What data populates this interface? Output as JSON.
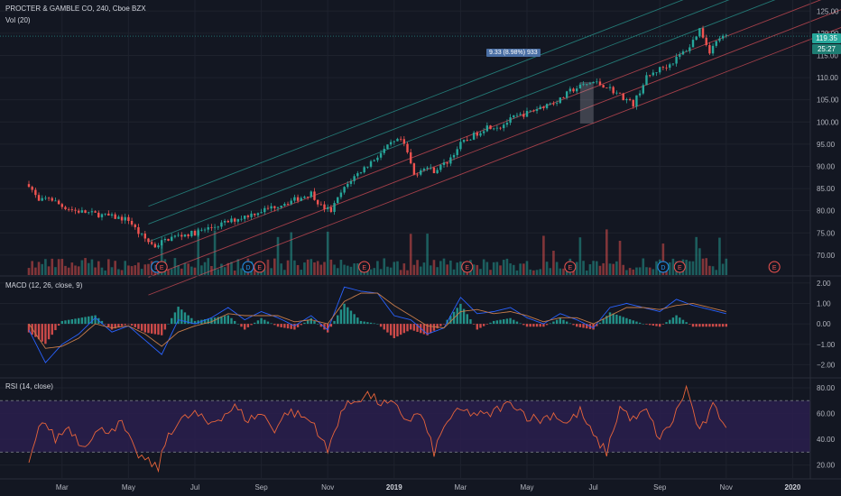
{
  "header": {
    "symbol_title": "PROCTER & GAMBLE CO, 240, Cboe BZX",
    "volume_label": "Vol (20)",
    "macd_label": "MACD (12, 26, close, 9)",
    "rsi_label": "RSI (14, close)"
  },
  "price_tags": {
    "last_price": "119.35",
    "countdown": "25:27"
  },
  "measure_label": "9.33 (8.98%) 933",
  "colors": {
    "background": "#131722",
    "up": "#26a69a",
    "down": "#ef5350",
    "channel_teal": "#2aa198",
    "channel_red": "#e0505a",
    "macd_line": "#2962ff",
    "signal_line": "#c77c4a",
    "rsi_line": "#e8643a",
    "rsi_band": "#2a1f4d"
  },
  "x_axis": {
    "labels": [
      "Mar",
      "May",
      "Jul",
      "Sep",
      "Nov",
      "2019",
      "Mar",
      "May",
      "Jul",
      "Sep",
      "Nov",
      "2020"
    ]
  },
  "events": [
    {
      "icon": "D",
      "month": 3.85
    },
    {
      "icon": "E",
      "month": 4.0
    },
    {
      "icon": "D",
      "month": 6.6
    },
    {
      "icon": "E",
      "month": 6.95
    },
    {
      "icon": "E",
      "month": 10.1
    },
    {
      "icon": "E",
      "month": 13.2
    },
    {
      "icon": "E",
      "month": 16.3
    },
    {
      "icon": "D",
      "month": 19.1
    },
    {
      "icon": "E",
      "month": 19.6
    },
    {
      "icon": "E",
      "month": 22.45
    }
  ],
  "chart_data": [
    {
      "type": "line",
      "panel": "price",
      "title": "PROCTER & GAMBLE CO, 240, Cboe BZX",
      "x_unit": "months since Feb 2018 (Feb = 0)",
      "y_axis": {
        "ticks": [
          70,
          75,
          80,
          85,
          90,
          95,
          100,
          105,
          110,
          115,
          120,
          125
        ],
        "range": [
          65.5,
          127.5
        ]
      },
      "series": [
        {
          "name": "close (approx.)",
          "x": [
            0,
            0.3,
            0.6,
            1.0,
            1.4,
            1.8,
            2.2,
            2.6,
            3.0,
            3.3,
            3.6,
            3.8,
            4.0,
            4.3,
            4.6,
            5.0,
            5.4,
            5.8,
            6.2,
            6.6,
            7.0,
            7.4,
            7.8,
            8.2,
            8.5,
            8.8,
            9.1,
            9.4,
            9.7,
            10.0,
            10.3,
            10.6,
            10.9,
            11.2,
            11.4,
            11.6,
            11.9,
            12.2,
            12.6,
            13.0,
            13.4,
            13.8,
            14.2,
            14.6,
            15.0,
            15.3,
            15.6,
            16.0,
            16.3,
            16.6,
            17.0,
            17.4,
            17.8,
            18.2,
            18.6,
            19.0,
            19.3,
            19.6,
            19.9,
            20.2,
            20.5,
            20.8,
            21.1
          ],
          "y": [
            86,
            82,
            83,
            81,
            80,
            79.5,
            79,
            78.5,
            78,
            75,
            73,
            72,
            73,
            74,
            74.5,
            75,
            76,
            77,
            78,
            79,
            80,
            81,
            82,
            83,
            84,
            81,
            80,
            84,
            87,
            89,
            91,
            93,
            95,
            96,
            93,
            88,
            90,
            89,
            91,
            95,
            97,
            99,
            99,
            101,
            102,
            103,
            104,
            105,
            107,
            108,
            109,
            108,
            106,
            104,
            110,
            112,
            113,
            115,
            117,
            121,
            116,
            119,
            119.35
          ]
        }
      ],
      "channel": {
        "description": "parallel regression channel, 3 teal lines and 3 red lines",
        "anchor_start": {
          "month": 3.6,
          "price": 73
        },
        "anchor_end": {
          "month": 20.2,
          "price": 121
        }
      },
      "last_price": 119.35,
      "measurement": {
        "change": 9.33,
        "percent": 8.98,
        "bars": 933,
        "from_month": 16.6,
        "to_month": 17.0
      }
    },
    {
      "type": "bar",
      "panel": "volume",
      "title": "Vol (20)",
      "note": "volume bars along bottom of price pane, colored by candle direction"
    },
    {
      "type": "line",
      "panel": "macd",
      "title": "MACD (12, 26, close, 9)",
      "y_axis": {
        "ticks": [
          -2.0,
          -1.0,
          0.0,
          1.0,
          2.0
        ],
        "range": [
          -2.6,
          2.3
        ]
      },
      "series": [
        {
          "name": "MACD",
          "x": [
            0,
            0.5,
            1.0,
            1.5,
            2.0,
            2.5,
            3.0,
            3.5,
            4.0,
            4.5,
            5.0,
            5.5,
            6.0,
            6.5,
            7.0,
            7.5,
            8.0,
            8.5,
            9.0,
            9.5,
            10.0,
            10.5,
            11.0,
            11.5,
            12.0,
            12.5,
            13.0,
            13.5,
            14.0,
            14.5,
            15.0,
            15.5,
            16.0,
            16.5,
            17.0,
            17.5,
            18.0,
            18.5,
            19.0,
            19.5,
            20.0,
            20.5,
            21.0
          ],
          "y": [
            -0.3,
            -1.9,
            -1.0,
            -0.5,
            0.3,
            -0.4,
            -0.1,
            -0.8,
            -1.5,
            0.2,
            0.0,
            0.3,
            0.8,
            0.2,
            0.6,
            0.3,
            -0.1,
            0.4,
            -0.3,
            1.8,
            1.6,
            1.5,
            0.4,
            0.2,
            -0.5,
            -0.2,
            1.3,
            0.5,
            0.6,
            0.8,
            0.3,
            0.0,
            0.5,
            0.2,
            -0.2,
            0.8,
            1.0,
            0.8,
            0.6,
            1.2,
            0.9,
            0.7,
            0.5
          ]
        },
        {
          "name": "Signal",
          "x": [
            0,
            0.5,
            1.0,
            1.5,
            2.0,
            2.5,
            3.0,
            3.5,
            4.0,
            4.5,
            5.0,
            5.5,
            6.0,
            6.5,
            7.0,
            7.5,
            8.0,
            8.5,
            9.0,
            9.5,
            10.0,
            10.5,
            11.0,
            11.5,
            12.0,
            12.5,
            13.0,
            13.5,
            14.0,
            14.5,
            15.0,
            15.5,
            16.0,
            16.5,
            17.0,
            17.5,
            18.0,
            18.5,
            19.0,
            19.5,
            20.0,
            20.5,
            21.0
          ],
          "y": [
            0.0,
            -1.2,
            -1.1,
            -0.7,
            0.0,
            -0.2,
            -0.1,
            -0.5,
            -1.1,
            -0.4,
            -0.1,
            0.1,
            0.5,
            0.4,
            0.4,
            0.4,
            0.1,
            0.2,
            0.0,
            1.1,
            1.5,
            1.5,
            0.9,
            0.4,
            -0.1,
            -0.2,
            0.6,
            0.7,
            0.5,
            0.6,
            0.4,
            0.1,
            0.3,
            0.3,
            0.0,
            0.4,
            0.8,
            0.8,
            0.7,
            0.9,
            1.0,
            0.8,
            0.6
          ]
        }
      ]
    },
    {
      "type": "line",
      "panel": "rsi",
      "title": "RSI (14, close)",
      "y_axis": {
        "ticks": [
          20.0,
          40.0,
          60.0,
          80.0
        ],
        "range": [
          10,
          87
        ]
      },
      "bands": {
        "upper": 70,
        "lower": 30
      },
      "series": [
        {
          "name": "RSI",
          "x": [
            0,
            0.4,
            0.8,
            1.2,
            1.6,
            2.0,
            2.4,
            2.8,
            3.2,
            3.6,
            3.9,
            4.2,
            4.6,
            5.0,
            5.4,
            5.8,
            6.2,
            6.6,
            7.0,
            7.4,
            7.8,
            8.2,
            8.6,
            9.0,
            9.4,
            9.8,
            10.2,
            10.6,
            11.0,
            11.4,
            11.8,
            12.2,
            12.6,
            13.0,
            13.4,
            13.8,
            14.2,
            14.6,
            15.0,
            15.4,
            15.8,
            16.2,
            16.6,
            17.0,
            17.4,
            17.8,
            18.2,
            18.6,
            19.0,
            19.4,
            19.8,
            20.2,
            20.6,
            21.0
          ],
          "y": [
            20,
            56,
            40,
            50,
            35,
            45,
            48,
            52,
            30,
            22,
            18,
            45,
            55,
            60,
            52,
            58,
            65,
            55,
            60,
            48,
            62,
            58,
            52,
            30,
            62,
            70,
            75,
            68,
            66,
            55,
            60,
            30,
            55,
            62,
            60,
            58,
            65,
            68,
            58,
            55,
            60,
            52,
            62,
            42,
            30,
            65,
            55,
            62,
            40,
            55,
            80,
            45,
            65,
            52
          ]
        }
      ]
    }
  ]
}
